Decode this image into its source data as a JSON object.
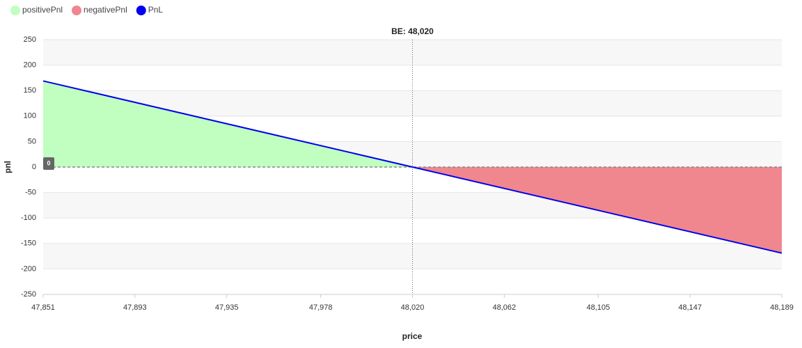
{
  "chart_data": {
    "type": "area",
    "x_label": "price",
    "y_label": "pnl",
    "xlim": [
      47851,
      48189
    ],
    "ylim": [
      -250,
      250
    ],
    "xticks": [
      {
        "value": 47851,
        "label": "47,851"
      },
      {
        "value": 47893,
        "label": "47,893"
      },
      {
        "value": 47935,
        "label": "47,935"
      },
      {
        "value": 47978,
        "label": "47,978"
      },
      {
        "value": 48020,
        "label": "48,020"
      },
      {
        "value": 48062,
        "label": "48,062"
      },
      {
        "value": 48105,
        "label": "48,105"
      },
      {
        "value": 48147,
        "label": "48,147"
      },
      {
        "value": 48189,
        "label": "48,189"
      }
    ],
    "yticks": [
      -250,
      -200,
      -150,
      -100,
      -50,
      0,
      50,
      100,
      150,
      200,
      250
    ],
    "grid": true,
    "series": [
      {
        "name": "positivePnl",
        "color": "#c0ffc0",
        "kind": "area",
        "x": [
          47851,
          48020
        ],
        "values": [
          169,
          0
        ]
      },
      {
        "name": "negativePnl",
        "color": "#f0868e",
        "kind": "area",
        "x": [
          48020,
          48189
        ],
        "values": [
          0,
          -169
        ]
      },
      {
        "name": "PnL",
        "color": "#0000ee",
        "kind": "line",
        "x": [
          47851,
          48020,
          48189
        ],
        "values": [
          169,
          0,
          -169
        ]
      }
    ],
    "annotation": {
      "label": "BE: 48,020",
      "x": 48020
    },
    "reference_line": {
      "y": 0
    }
  }
}
